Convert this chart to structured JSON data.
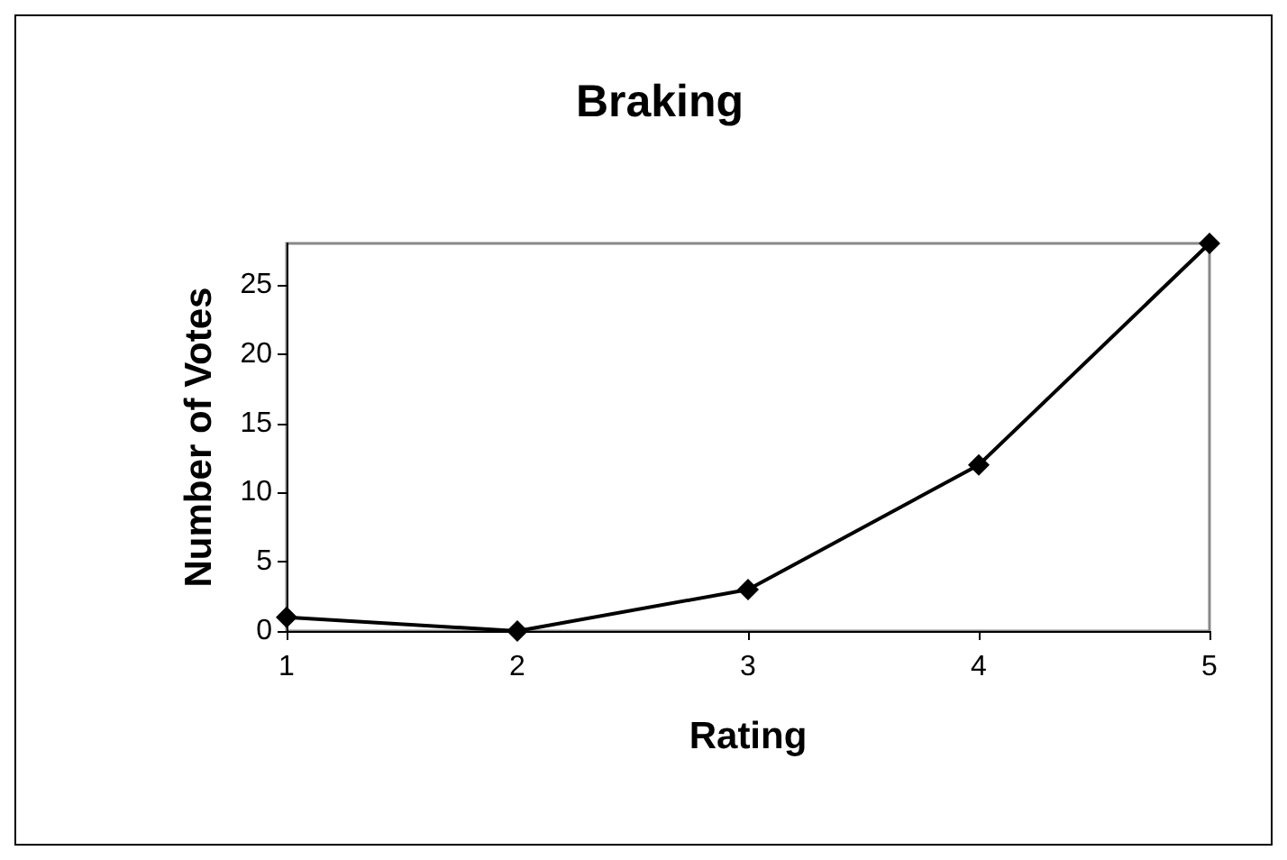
{
  "chart_data": {
    "type": "line",
    "title": "Braking",
    "xlabel": "Rating",
    "ylabel": "Number of Votes",
    "x": [
      1,
      2,
      3,
      4,
      5
    ],
    "series": [
      {
        "color": "#000000",
        "values": [
          1,
          0,
          3,
          12,
          28
        ]
      }
    ],
    "xlim": [
      1,
      5
    ],
    "xticks": [
      1,
      2,
      3,
      4,
      5
    ],
    "ylim": [
      0,
      28
    ],
    "yticks": [
      0,
      5,
      10,
      15,
      20,
      25
    ],
    "grid": false,
    "marker": "diamond",
    "line_style": "solid"
  }
}
